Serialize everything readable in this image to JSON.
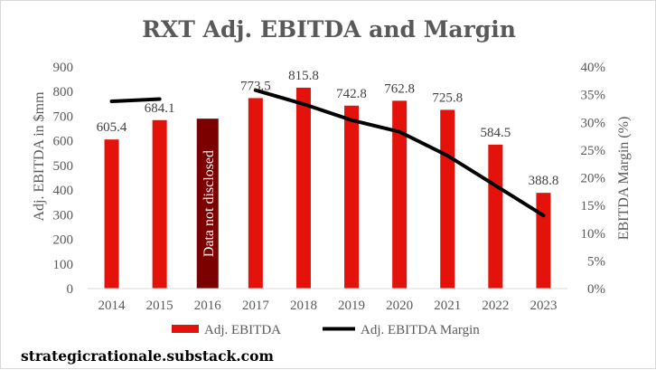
{
  "chart_data": {
    "type": "bar",
    "title": "RXT Adj. EBITDA and Margin",
    "categories": [
      "2014",
      "2015",
      "2016",
      "2017",
      "2018",
      "2019",
      "2020",
      "2021",
      "2022",
      "2023"
    ],
    "ylabel": "Adj. EBITDA in $mm",
    "y2label": "EBITDA Margin (%)",
    "ylim": [
      0,
      900
    ],
    "y2lim": [
      0,
      40
    ],
    "yticks": [
      "0",
      "100",
      "200",
      "300",
      "400",
      "500",
      "600",
      "700",
      "800",
      "900"
    ],
    "y2ticks": [
      "0%",
      "5%",
      "10%",
      "15%",
      "20%",
      "25%",
      "30%",
      "35%",
      "40%"
    ],
    "grid": false,
    "legend_position": "bottom",
    "series": [
      {
        "name": "Adj. EBITDA",
        "type": "bar",
        "axis": "left",
        "color": "#e3120b",
        "values": [
          605.4,
          684.1,
          690,
          773.5,
          815.8,
          742.8,
          762.8,
          725.8,
          584.5,
          388.8
        ],
        "labels": [
          "605.4",
          "684.1",
          "",
          "773.5",
          "815.8",
          "742.8",
          "762.8",
          "725.8",
          "584.5",
          "388.8"
        ]
      },
      {
        "name": "Adj. EBITDA Margin",
        "type": "line",
        "axis": "right",
        "color": "#000000",
        "values": [
          33.8,
          34.2,
          null,
          35.8,
          33.3,
          30.4,
          28.3,
          24.0,
          18.6,
          13.2
        ]
      }
    ],
    "annotation": {
      "category": "2016",
      "text": "Data not disclosed",
      "color": "#7b0000"
    }
  },
  "source": "strategicrationale.substack.com"
}
